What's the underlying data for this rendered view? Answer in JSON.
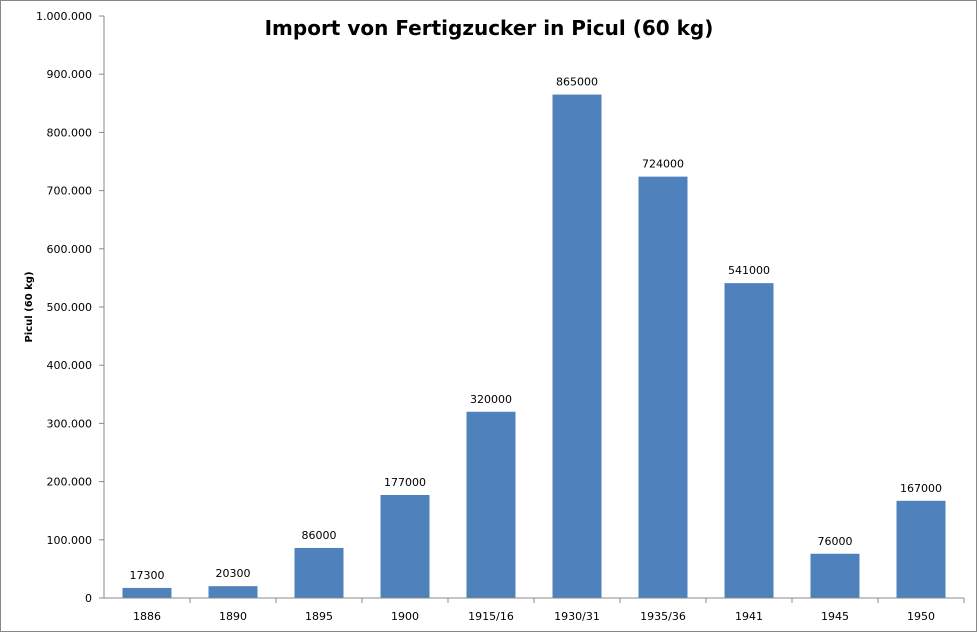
{
  "chart_data": {
    "type": "bar",
    "title": "Import von Fertigzucker in Picul (60 kg)",
    "xlabel": "",
    "ylabel": "Picul (60 kg)",
    "categories": [
      "1886",
      "1890",
      "1895",
      "1900",
      "1915/16",
      "1930/31",
      "1935/36",
      "1941",
      "1945",
      "1950"
    ],
    "values": [
      17300,
      20300,
      86000,
      177000,
      320000,
      865000,
      724000,
      541000,
      76000,
      167000
    ],
    "data_labels": [
      "17300",
      "20300",
      "86000",
      "177000",
      "320000",
      "865000",
      "724000",
      "541000",
      "76000",
      "167000"
    ],
    "ylim": [
      0,
      1000000
    ],
    "yticks": [
      0,
      100000,
      200000,
      300000,
      400000,
      500000,
      600000,
      700000,
      800000,
      900000,
      1000000
    ],
    "ytick_labels": [
      "0",
      "100.000",
      "200.000",
      "300.000",
      "400.000",
      "500.000",
      "600.000",
      "700.000",
      "800.000",
      "900.000",
      "1.000.000"
    ],
    "grid": false,
    "legend": "none",
    "bar_color": "#4F81BD"
  }
}
